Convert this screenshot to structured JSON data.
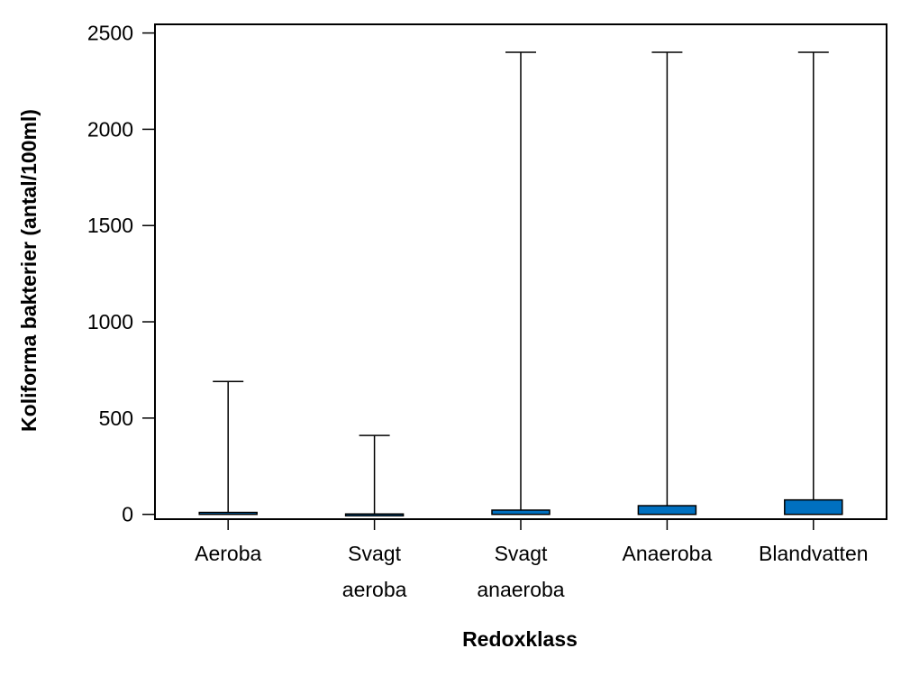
{
  "chart_data": {
    "type": "boxplot",
    "title": "",
    "xlabel": "Redoxklass",
    "ylabel": "Koliforma bakterier (antal/100ml)",
    "ylim": [
      -25,
      2545
    ],
    "yticks": [
      0,
      500,
      1000,
      1500,
      2000,
      2500
    ],
    "ytick_labels": [
      "0",
      "500",
      "1000",
      "1500",
      "2000",
      "2500"
    ],
    "categories": [
      {
        "label": [
          "Aeroba"
        ],
        "min": 0,
        "q1": 0,
        "q3": 10,
        "max": 690
      },
      {
        "label": [
          "Svagt",
          "aeroba"
        ],
        "min": 0,
        "q1": 0,
        "q3": 2,
        "max": 410
      },
      {
        "label": [
          "Svagt",
          "anaeroba"
        ],
        "min": 0,
        "q1": 0,
        "q3": 22,
        "max": 2400
      },
      {
        "label": [
          "Anaeroba"
        ],
        "min": 0,
        "q1": 0,
        "q3": 45,
        "max": 2400
      },
      {
        "label": [
          "Blandvatten"
        ],
        "min": 0,
        "q1": 0,
        "q3": 75,
        "max": 2400
      }
    ],
    "box_color": "#0070c0",
    "grid": false,
    "legend": "none"
  }
}
